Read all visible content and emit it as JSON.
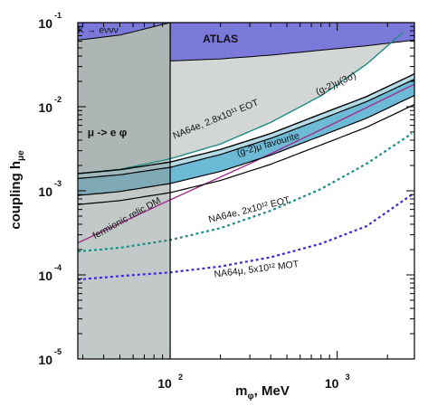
{
  "chart_data": {
    "type": "line",
    "title": "",
    "xlabel": {
      "main": "m",
      "sub": "φ",
      "suffix": ", MeV"
    },
    "ylabel": {
      "main": "coupling h",
      "sub": "μe"
    },
    "x_scale": "log",
    "y_scale": "log",
    "xlim": [
      28,
      2900
    ],
    "ylim": [
      1e-05,
      0.1
    ],
    "x_ticks": [
      {
        "value": 100,
        "base": "10",
        "exp": "2"
      },
      {
        "value": 1000,
        "base": "10",
        "exp": "3"
      }
    ],
    "y_ticks": [
      {
        "value": 0.1,
        "base": "10",
        "exp": "-1"
      },
      {
        "value": 0.01,
        "base": "10",
        "exp": "-2"
      },
      {
        "value": 0.001,
        "base": "10",
        "exp": "-3"
      },
      {
        "value": 0.0001,
        "base": "10",
        "exp": "-4"
      },
      {
        "value": 1e-05,
        "base": "10",
        "exp": "-5"
      }
    ],
    "series": [
      {
        "name": "NA64e, 2.8x10¹¹ EOT",
        "style": "solid",
        "color": "#1f8c86",
        "x": [
          28,
          50,
          100,
          200,
          400,
          800,
          1500,
          2500
        ],
        "y": [
          0.0016,
          0.0018,
          0.0024,
          0.0036,
          0.0065,
          0.0135,
          0.032,
          0.078
        ]
      },
      {
        "name": "NA64e, 2x10¹² EOT",
        "style": "dashed",
        "color": "#1f8c86",
        "x": [
          28,
          50,
          100,
          200,
          400,
          800,
          1500,
          2800
        ],
        "y": [
          0.00019,
          0.00021,
          0.00026,
          0.00036,
          0.00058,
          0.00105,
          0.0021,
          0.0048
        ]
      },
      {
        "name": "NA64μ, 5x10¹² MOT",
        "style": "dashed",
        "color": "#3b2bd6",
        "x": [
          28,
          50,
          100,
          200,
          400,
          800,
          1500,
          2800
        ],
        "y": [
          8.8e-05,
          9.68e-05,
          0.000107,
          0.000126,
          0.000162,
          0.000235,
          0.00038,
          0.0009
        ]
      },
      {
        "name": "fermionic relic DM",
        "style": "solid",
        "color": "#a32d8e",
        "x": [
          28,
          100,
          300,
          1000,
          2900
        ],
        "y": [
          0.00024,
          0.00078,
          0.0021,
          0.0066,
          0.0185
        ]
      },
      {
        "name": "(g-2)μ(3σ)",
        "style": "solid",
        "color": "#000000",
        "x": [
          28,
          50,
          100,
          200,
          400,
          800,
          1500,
          2900
        ],
        "y": [
          0.0016,
          0.00178,
          0.0022,
          0.0031,
          0.0048,
          0.0082,
          0.0132,
          0.0246
        ]
      },
      {
        "name": "(g-2)μ favourite",
        "style": "band",
        "color": "#5fb4d2",
        "x": [
          28,
          50,
          100,
          200,
          400,
          800,
          1500,
          2900
        ],
        "y_upper": [
          0.0014,
          0.00155,
          0.0019,
          0.0027,
          0.0042,
          0.0071,
          0.0115,
          0.0212
        ],
        "y_lower": [
          0.00088,
          0.00098,
          0.00122,
          0.0017,
          0.00265,
          0.0045,
          0.0073,
          0.0136
        ]
      }
    ],
    "shaded_regions": [
      {
        "name": "K → eννν",
        "color": "#7a78d8",
        "x": [
          28,
          50,
          100
        ],
        "y_lower": [
          0.062,
          0.071,
          0.1
        ]
      },
      {
        "name": "ATLAS",
        "color": "#7a78d8",
        "x": [
          100,
          200,
          400,
          800,
          1500,
          2900
        ],
        "y_lower": [
          0.035,
          0.037,
          0.041,
          0.047,
          0.053,
          0.062
        ]
      },
      {
        "name": "μ -> e φ",
        "color": "#8f9d9a",
        "x": [
          28,
          100
        ],
        "y_lower": [
          1e-05,
          1e-05
        ]
      }
    ],
    "reference_lines": [
      {
        "x": 100,
        "color": "#000000"
      }
    ],
    "annotations": [
      {
        "text": "K → eννν",
        "x": 37,
        "y": 0.075,
        "rotate": 0
      },
      {
        "text": "ATLAS",
        "x": 200,
        "y": 0.058,
        "rotate": 0
      },
      {
        "text": "μ -> e φ",
        "x": 42,
        "y": 0.0045,
        "rotate": 0
      },
      {
        "text": "NA64e, 2.8x10¹¹ EOT",
        "x": 190,
        "y": 0.0066,
        "rotate": -22
      },
      {
        "text": "(g-2)μ(3σ)",
        "x": 1000,
        "y": 0.0175,
        "rotate": -24
      },
      {
        "text": "(g-2)μ favourite",
        "x": 390,
        "y": 0.0033,
        "rotate": -16
      },
      {
        "text": "NA64e, 2x10¹² EOT",
        "x": 300,
        "y": 0.00055,
        "rotate": -14
      },
      {
        "text": "NA64μ, 5x10¹² MOT",
        "x": 330,
        "y": 0.000108,
        "rotate": -7
      },
      {
        "text": "fermionic relic DM",
        "x": 56,
        "y": 0.00044,
        "rotate": -29
      }
    ]
  }
}
